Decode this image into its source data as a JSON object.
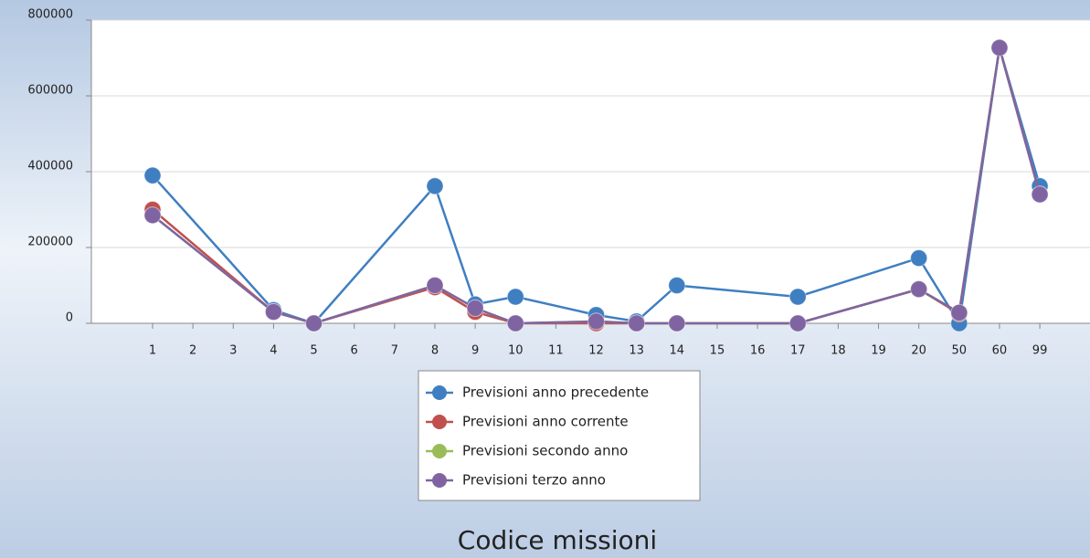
{
  "chart_data": {
    "type": "line",
    "x_label": "Codice missioni",
    "categories": [
      1,
      2,
      3,
      4,
      5,
      6,
      7,
      8,
      9,
      10,
      11,
      12,
      13,
      14,
      15,
      16,
      17,
      18,
      19,
      20,
      50,
      60,
      99
    ],
    "x": [
      1,
      4,
      5,
      8,
      9,
      10,
      12,
      13,
      14,
      17,
      20,
      50,
      60,
      99
    ],
    "series": [
      {
        "name": "Previsioni anno precedente",
        "color": "#3f7fc1",
        "values": [
          390000,
          35000,
          0,
          362000,
          50000,
          70000,
          22000,
          5000,
          100000,
          70000,
          172000,
          0,
          727000,
          362000
        ]
      },
      {
        "name": "Previsioni anno corrente",
        "color": "#c0504d",
        "values": [
          300000,
          30000,
          0,
          95000,
          30000,
          0,
          0,
          0,
          0,
          0,
          90000,
          25000,
          727000,
          340000
        ]
      },
      {
        "name": "Previsioni secondo anno",
        "color": "#9bbb59",
        "values": [
          285000,
          30000,
          0,
          100000,
          40000,
          0,
          5000,
          0,
          0,
          0,
          90000,
          28000,
          727000,
          340000
        ]
      },
      {
        "name": "Previsioni terzo anno",
        "color": "#8064a2",
        "values": [
          285000,
          30000,
          0,
          100000,
          40000,
          0,
          5000,
          0,
          0,
          0,
          90000,
          28000,
          727000,
          340000
        ]
      }
    ],
    "ylim": [
      0,
      800000
    ],
    "yticks": [
      0,
      200000,
      400000,
      600000,
      800000
    ],
    "grid": true,
    "legend": "bottom"
  }
}
